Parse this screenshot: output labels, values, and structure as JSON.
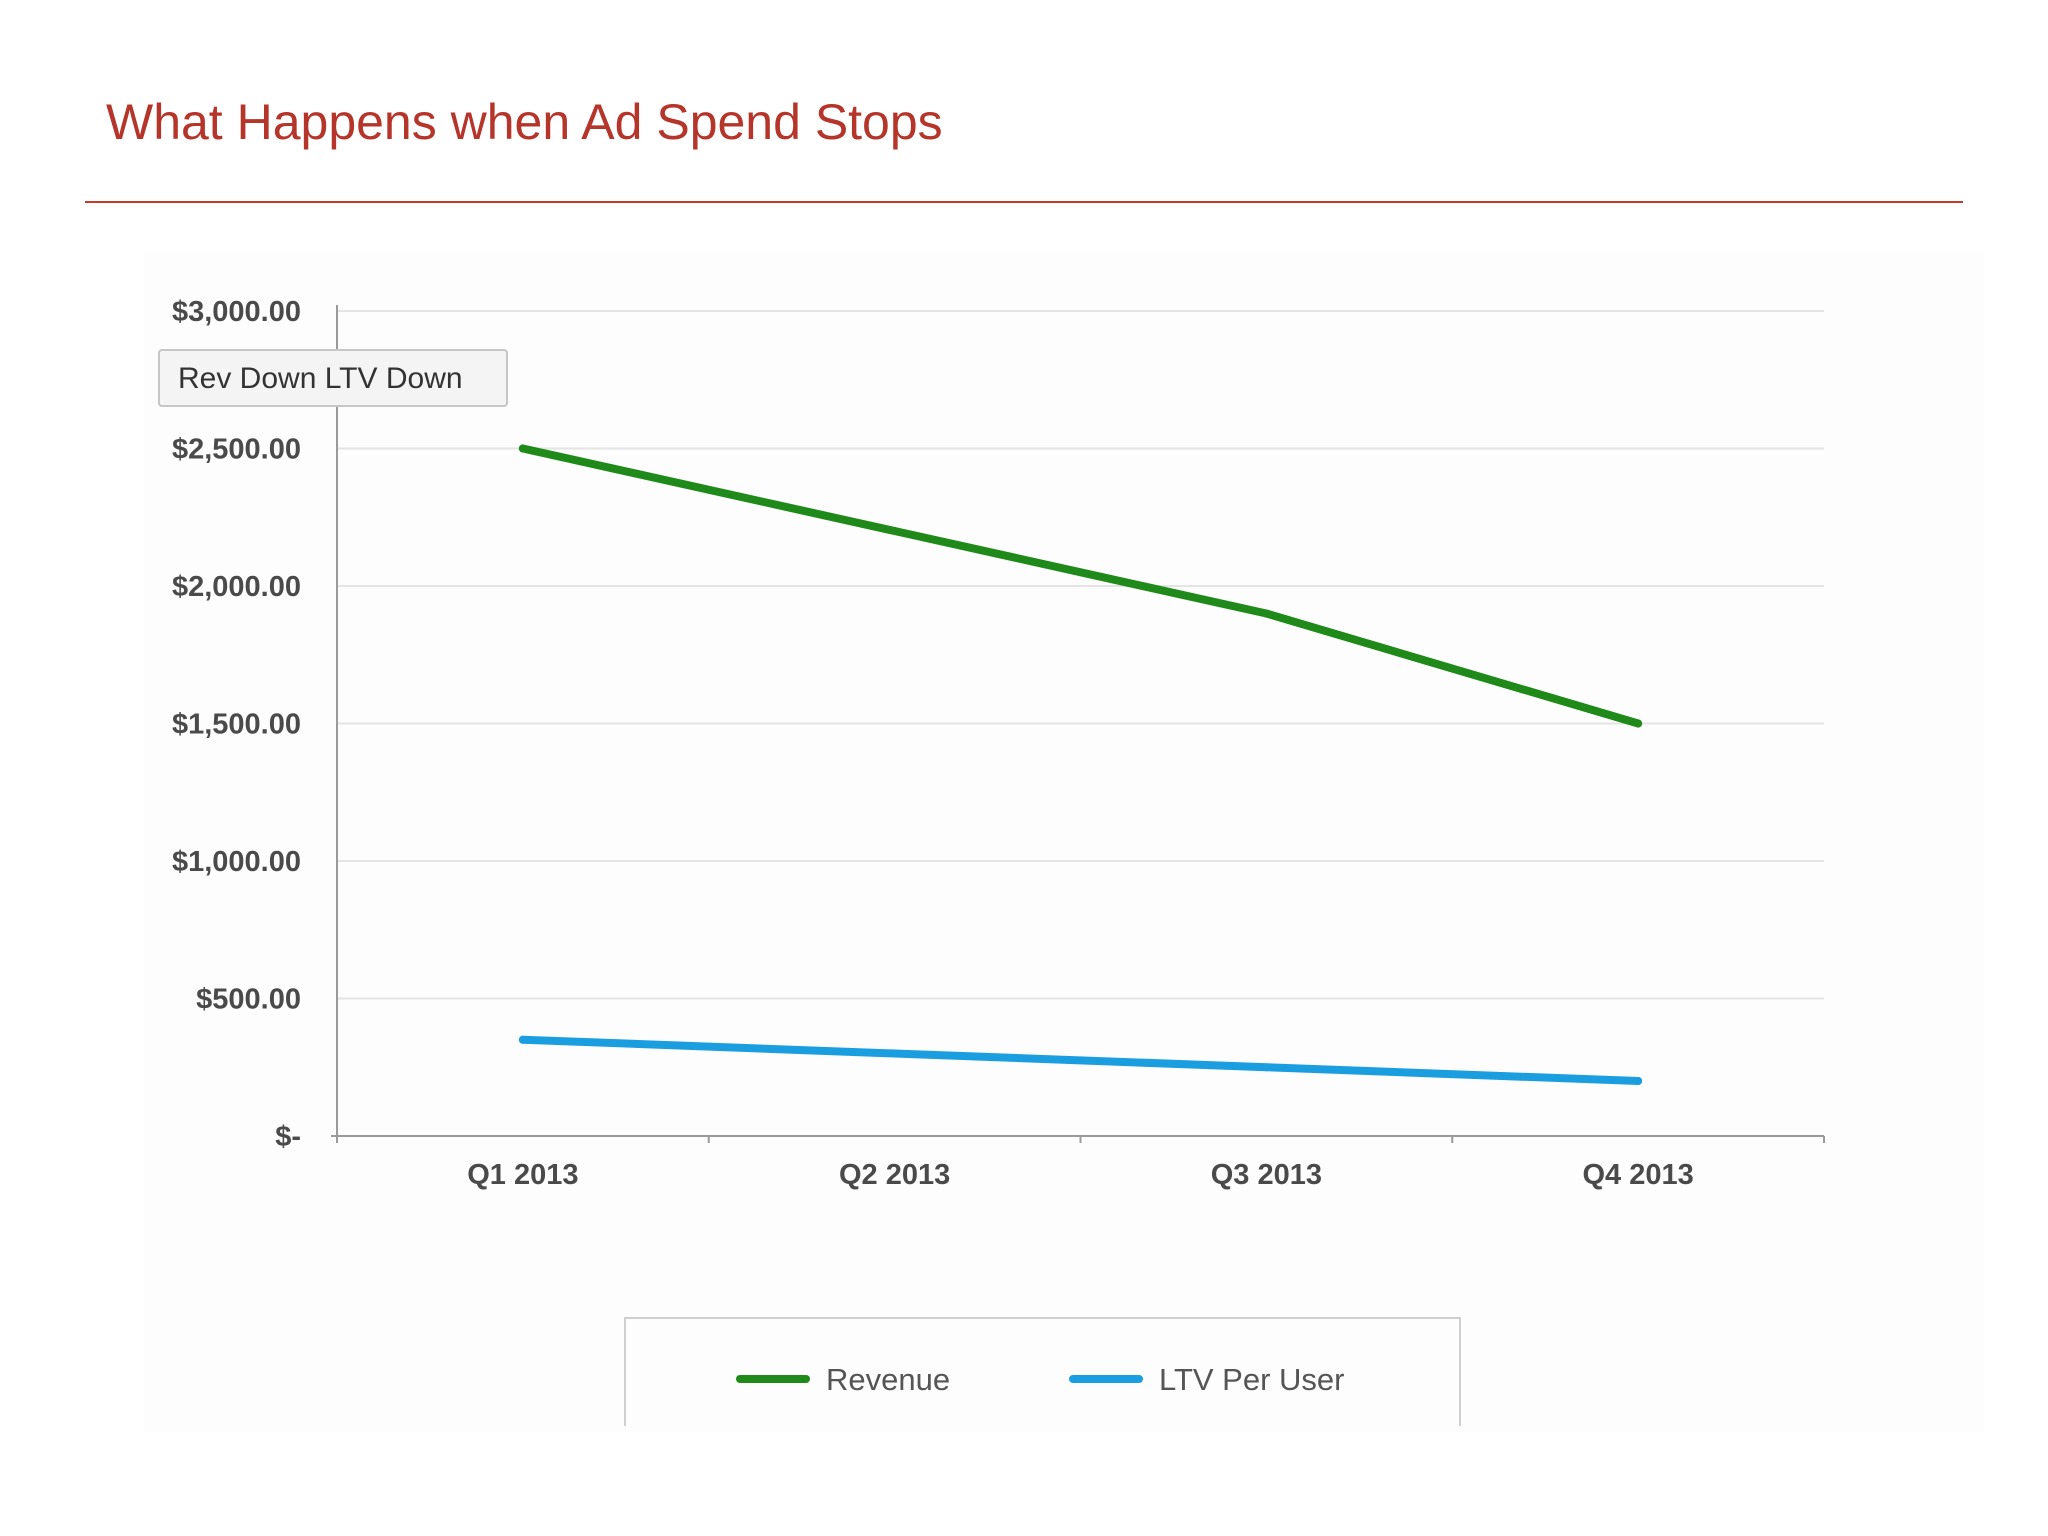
{
  "slide": {
    "title": "What Happens when Ad Spend Stops",
    "title_color": "#b5352a",
    "rule_color": "#c8392e"
  },
  "chart_data": {
    "type": "line",
    "title": "",
    "xlabel": "",
    "ylabel": "",
    "categories": [
      "Q1 2013",
      "Q2 2013",
      "Q3 2013",
      "Q4 2013"
    ],
    "series": [
      {
        "name": "Revenue",
        "values": [
          2500,
          2200,
          1900,
          1500
        ],
        "color": "#1f8a1a"
      },
      {
        "name": "LTV Per User",
        "values": [
          350,
          300,
          250,
          200
        ],
        "color": "#1b9ee0"
      }
    ],
    "ylim": [
      0,
      3000
    ],
    "y_ticks": [
      0,
      500,
      1000,
      1500,
      2000,
      2500,
      3000
    ],
    "y_tick_labels": [
      "$-",
      "$500.00",
      "$1,000.00",
      "$1,500.00",
      "$2,000.00",
      "$2,500.00",
      "$3,000.00"
    ],
    "grid": true,
    "legend_position": "bottom",
    "annotation": "Rev Down LTV Down"
  }
}
